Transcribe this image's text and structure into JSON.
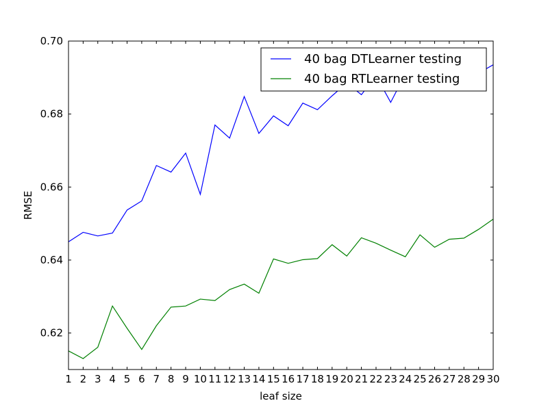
{
  "chart_data": {
    "type": "line",
    "xlabel": "leaf size",
    "ylabel": "RMSE",
    "xlim": [
      1,
      30
    ],
    "ylim": [
      0.61,
      0.7
    ],
    "x": [
      1,
      2,
      3,
      4,
      5,
      6,
      7,
      8,
      9,
      10,
      11,
      12,
      13,
      14,
      15,
      16,
      17,
      18,
      19,
      20,
      21,
      22,
      23,
      24,
      25,
      26,
      27,
      28,
      29,
      30
    ],
    "xticks": [
      "1",
      "2",
      "3",
      "4",
      "5",
      "6",
      "7",
      "8",
      "9",
      "10",
      "11",
      "12",
      "13",
      "14",
      "15",
      "16",
      "17",
      "18",
      "19",
      "20",
      "21",
      "22",
      "23",
      "24",
      "25",
      "26",
      "27",
      "28",
      "29",
      "30"
    ],
    "yticks": [
      0.62,
      0.64,
      0.66,
      0.68,
      0.7
    ],
    "ytick_labels": [
      "0.62",
      "0.64",
      "0.66",
      "0.68",
      "0.70"
    ],
    "grid": false,
    "legend_position": "top-right",
    "series": [
      {
        "name": "40 bag DTLearner testing",
        "color": "#0000ff",
        "values": [
          0.645,
          0.6476,
          0.6466,
          0.6474,
          0.6537,
          0.6562,
          0.6659,
          0.6641,
          0.6693,
          0.658,
          0.677,
          0.6734,
          0.6848,
          0.6747,
          0.6795,
          0.6768,
          0.683,
          0.6812,
          0.685,
          0.6885,
          0.6853,
          0.6905,
          0.6832,
          0.691,
          0.6915,
          0.69,
          0.692,
          0.6908,
          0.6912,
          0.6935
        ]
      },
      {
        "name": "40 bag RTLearner testing",
        "color": "#008000",
        "values": [
          0.6151,
          0.613,
          0.6161,
          0.6274,
          0.6213,
          0.6155,
          0.622,
          0.6271,
          0.6274,
          0.6293,
          0.6289,
          0.6319,
          0.6334,
          0.6309,
          0.6403,
          0.6391,
          0.6401,
          0.6404,
          0.6442,
          0.6411,
          0.6461,
          0.6446,
          0.6427,
          0.6409,
          0.6469,
          0.6435,
          0.6457,
          0.646,
          0.6484,
          0.6512
        ]
      }
    ]
  }
}
